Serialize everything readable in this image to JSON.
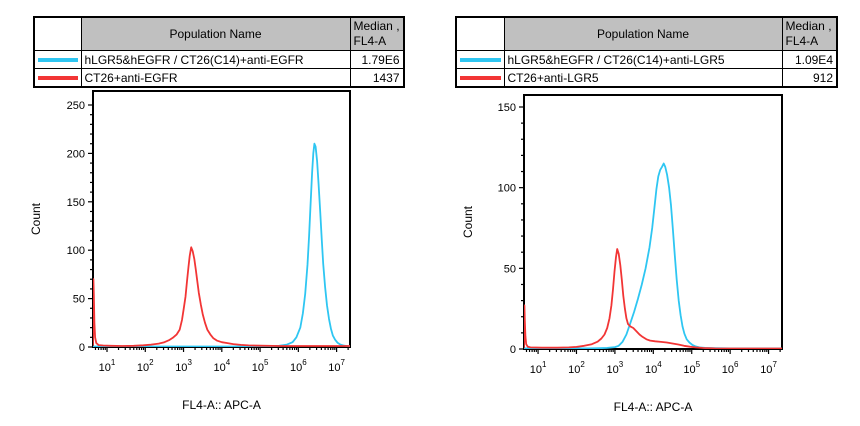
{
  "panels": [
    {
      "table": {
        "header_population": "Population Name",
        "header_median_line1": "Median ,",
        "header_median_line2": "FL4-A",
        "rows": [
          {
            "name": "hLGR5&hEGFR / CT26(C14)+anti-EGFR",
            "median": "1.79E6",
            "color": "#2EC6F2"
          },
          {
            "name": "CT26+anti-EGFR",
            "median": "1437",
            "color": "#F23535"
          }
        ]
      }
    },
    {
      "table": {
        "header_population": "Population Name",
        "header_median_line1": "Median ,",
        "header_median_line2": "FL4-A",
        "rows": [
          {
            "name": "hLGR5&hEGFR / CT26(C14)+anti-LGR5",
            "median": "1.09E4",
            "color": "#2EC6F2"
          },
          {
            "name": "CT26+anti-LGR5",
            "median": "912",
            "color": "#F23535"
          }
        ]
      }
    }
  ],
  "chart_data": [
    {
      "type": "line",
      "subtype": "flow-cytometry-histogram",
      "title": "",
      "xlabel": "FL4-A:: APC-A",
      "ylabel": "Count",
      "x_scale": "log10",
      "xlim_log10": [
        0.634,
        7.35
      ],
      "ylim": [
        0,
        250
      ],
      "ytick_step": 50,
      "ytick_minor_step": 10,
      "xtick_decades": [
        1,
        2,
        3,
        4,
        5,
        6,
        7
      ],
      "legend_position": "table-above",
      "grid": false,
      "series": [
        {
          "name": "hLGR5&hEGFR / CT26(C14)+anti-EGFR",
          "color": "#2EC6F2",
          "median_fl4a": "1.79E6",
          "points_logx_count": [
            [
              0.65,
              0.5
            ],
            [
              1.5,
              0.5
            ],
            [
              2.5,
              0.5
            ],
            [
              3.5,
              0.5
            ],
            [
              4.5,
              0.5
            ],
            [
              5.0,
              0.6
            ],
            [
              5.3,
              0.8
            ],
            [
              5.5,
              1.2
            ],
            [
              5.7,
              2.5
            ],
            [
              5.85,
              5
            ],
            [
              5.95,
              10
            ],
            [
              6.05,
              20
            ],
            [
              6.12,
              35
            ],
            [
              6.18,
              55
            ],
            [
              6.24,
              85
            ],
            [
              6.28,
              115
            ],
            [
              6.32,
              148
            ],
            [
              6.36,
              180
            ],
            [
              6.39,
              200
            ],
            [
              6.42,
              210
            ],
            [
              6.45,
              207
            ],
            [
              6.49,
              192
            ],
            [
              6.53,
              168
            ],
            [
              6.57,
              140
            ],
            [
              6.61,
              112
            ],
            [
              6.65,
              86
            ],
            [
              6.7,
              62
            ],
            [
              6.75,
              43
            ],
            [
              6.8,
              29
            ],
            [
              6.85,
              19
            ],
            [
              6.9,
              12
            ],
            [
              6.96,
              7.5
            ],
            [
              7.02,
              4.5
            ],
            [
              7.1,
              2.5
            ],
            [
              7.18,
              1.5
            ],
            [
              7.26,
              1
            ],
            [
              7.34,
              0.8
            ]
          ]
        },
        {
          "name": "CT26+anti-EGFR",
          "color": "#F23535",
          "median_fl4a": "1437",
          "points_logx_count": [
            [
              0.634,
              2
            ],
            [
              0.64,
              40
            ],
            [
              0.645,
              70
            ],
            [
              0.655,
              55
            ],
            [
              0.67,
              25
            ],
            [
              0.69,
              10
            ],
            [
              0.72,
              4
            ],
            [
              0.78,
              2
            ],
            [
              0.9,
              1.5
            ],
            [
              1.1,
              1.2
            ],
            [
              1.4,
              1
            ],
            [
              1.7,
              1.2
            ],
            [
              1.95,
              1.8
            ],
            [
              2.15,
              2.5
            ],
            [
              2.35,
              3.5
            ],
            [
              2.5,
              5
            ],
            [
              2.62,
              7
            ],
            [
              2.72,
              9.5
            ],
            [
              2.82,
              13
            ],
            [
              2.9,
              18
            ],
            [
              2.96,
              28
            ],
            [
              3.0,
              38
            ],
            [
              3.05,
              52
            ],
            [
              3.09,
              68
            ],
            [
              3.13,
              83
            ],
            [
              3.16,
              94
            ],
            [
              3.2,
              103
            ],
            [
              3.24,
              99
            ],
            [
              3.28,
              91
            ],
            [
              3.32,
              80
            ],
            [
              3.36,
              68
            ],
            [
              3.4,
              56
            ],
            [
              3.45,
              44
            ],
            [
              3.5,
              34
            ],
            [
              3.56,
              25
            ],
            [
              3.62,
              18
            ],
            [
              3.7,
              13
            ],
            [
              3.78,
              9
            ],
            [
              3.88,
              6.5
            ],
            [
              4.0,
              5
            ],
            [
              4.15,
              4
            ],
            [
              4.3,
              3
            ],
            [
              4.5,
              2.2
            ],
            [
              4.7,
              1.7
            ],
            [
              5.0,
              1.3
            ],
            [
              5.5,
              1
            ],
            [
              6.0,
              1
            ],
            [
              6.5,
              1
            ],
            [
              7.0,
              1
            ],
            [
              7.34,
              1
            ]
          ]
        }
      ]
    },
    {
      "type": "line",
      "subtype": "flow-cytometry-histogram",
      "title": "",
      "xlabel": "FL4-A:: APC-A",
      "ylabel": "Count",
      "x_scale": "log10",
      "xlim_log10": [
        0.634,
        7.35
      ],
      "ylim": [
        0,
        150
      ],
      "ytick_step": 50,
      "ytick_minor_step": 10,
      "xtick_decades": [
        1,
        2,
        3,
        4,
        5,
        6,
        7
      ],
      "legend_position": "table-above",
      "grid": false,
      "series": [
        {
          "name": "hLGR5&hEGFR / CT26(C14)+anti-LGR5",
          "color": "#2EC6F2",
          "median_fl4a": "1.09E4",
          "points_logx_count": [
            [
              0.65,
              0.4
            ],
            [
              1.5,
              0.4
            ],
            [
              2.3,
              0.4
            ],
            [
              2.6,
              0.5
            ],
            [
              2.8,
              0.7
            ],
            [
              3.0,
              1.2
            ],
            [
              3.1,
              2
            ],
            [
              3.2,
              4.5
            ],
            [
              3.3,
              9
            ],
            [
              3.4,
              16
            ],
            [
              3.5,
              23
            ],
            [
              3.6,
              31
            ],
            [
              3.7,
              40
            ],
            [
              3.8,
              50
            ],
            [
              3.9,
              63
            ],
            [
              3.97,
              75
            ],
            [
              4.03,
              88
            ],
            [
              4.08,
              99
            ],
            [
              4.13,
              107
            ],
            [
              4.18,
              111
            ],
            [
              4.23,
              113
            ],
            [
              4.27,
              115
            ],
            [
              4.31,
              113
            ],
            [
              4.36,
              108
            ],
            [
              4.41,
              100
            ],
            [
              4.46,
              89
            ],
            [
              4.51,
              74
            ],
            [
              4.56,
              58
            ],
            [
              4.61,
              43
            ],
            [
              4.66,
              30
            ],
            [
              4.71,
              21
            ],
            [
              4.76,
              14
            ],
            [
              4.81,
              9.5
            ],
            [
              4.87,
              6
            ],
            [
              4.94,
              4
            ],
            [
              5.02,
              2.5
            ],
            [
              5.1,
              1.6
            ],
            [
              5.2,
              1
            ],
            [
              5.35,
              0.7
            ],
            [
              5.6,
              0.5
            ],
            [
              6.0,
              0.4
            ],
            [
              6.5,
              0.4
            ],
            [
              7.0,
              0.4
            ],
            [
              7.34,
              0.4
            ]
          ]
        },
        {
          "name": "CT26+anti-LGR5",
          "color": "#F23535",
          "median_fl4a": "912",
          "points_logx_count": [
            [
              0.634,
              1
            ],
            [
              0.64,
              16
            ],
            [
              0.645,
              27
            ],
            [
              0.655,
              18
            ],
            [
              0.67,
              8
            ],
            [
              0.69,
              3
            ],
            [
              0.73,
              1.5
            ],
            [
              0.8,
              1
            ],
            [
              1.1,
              0.8
            ],
            [
              1.5,
              0.8
            ],
            [
              1.8,
              1
            ],
            [
              2.0,
              1.3
            ],
            [
              2.2,
              2
            ],
            [
              2.4,
              3
            ],
            [
              2.55,
              4.5
            ],
            [
              2.65,
              6.5
            ],
            [
              2.73,
              9
            ],
            [
              2.8,
              13
            ],
            [
              2.86,
              19
            ],
            [
              2.91,
              27
            ],
            [
              2.95,
              37
            ],
            [
              2.99,
              48
            ],
            [
              3.03,
              57
            ],
            [
              3.06,
              62
            ],
            [
              3.1,
              59
            ],
            [
              3.14,
              52
            ],
            [
              3.18,
              43
            ],
            [
              3.22,
              33
            ],
            [
              3.26,
              25
            ],
            [
              3.3,
              19
            ],
            [
              3.34,
              15.5
            ],
            [
              3.4,
              14
            ],
            [
              3.48,
              13
            ],
            [
              3.56,
              11
            ],
            [
              3.64,
              9
            ],
            [
              3.72,
              7.5
            ],
            [
              3.82,
              6
            ],
            [
              3.92,
              5.2
            ],
            [
              4.05,
              4.8
            ],
            [
              4.2,
              4.4
            ],
            [
              4.35,
              4
            ],
            [
              4.5,
              3.4
            ],
            [
              4.65,
              2.8
            ],
            [
              4.8,
              2
            ],
            [
              4.95,
              1.4
            ],
            [
              5.1,
              1
            ],
            [
              5.3,
              0.6
            ],
            [
              5.6,
              0.4
            ],
            [
              6.0,
              0.3
            ],
            [
              6.5,
              0.3
            ],
            [
              7.0,
              0.3
            ],
            [
              7.34,
              0.3
            ]
          ]
        }
      ]
    }
  ]
}
